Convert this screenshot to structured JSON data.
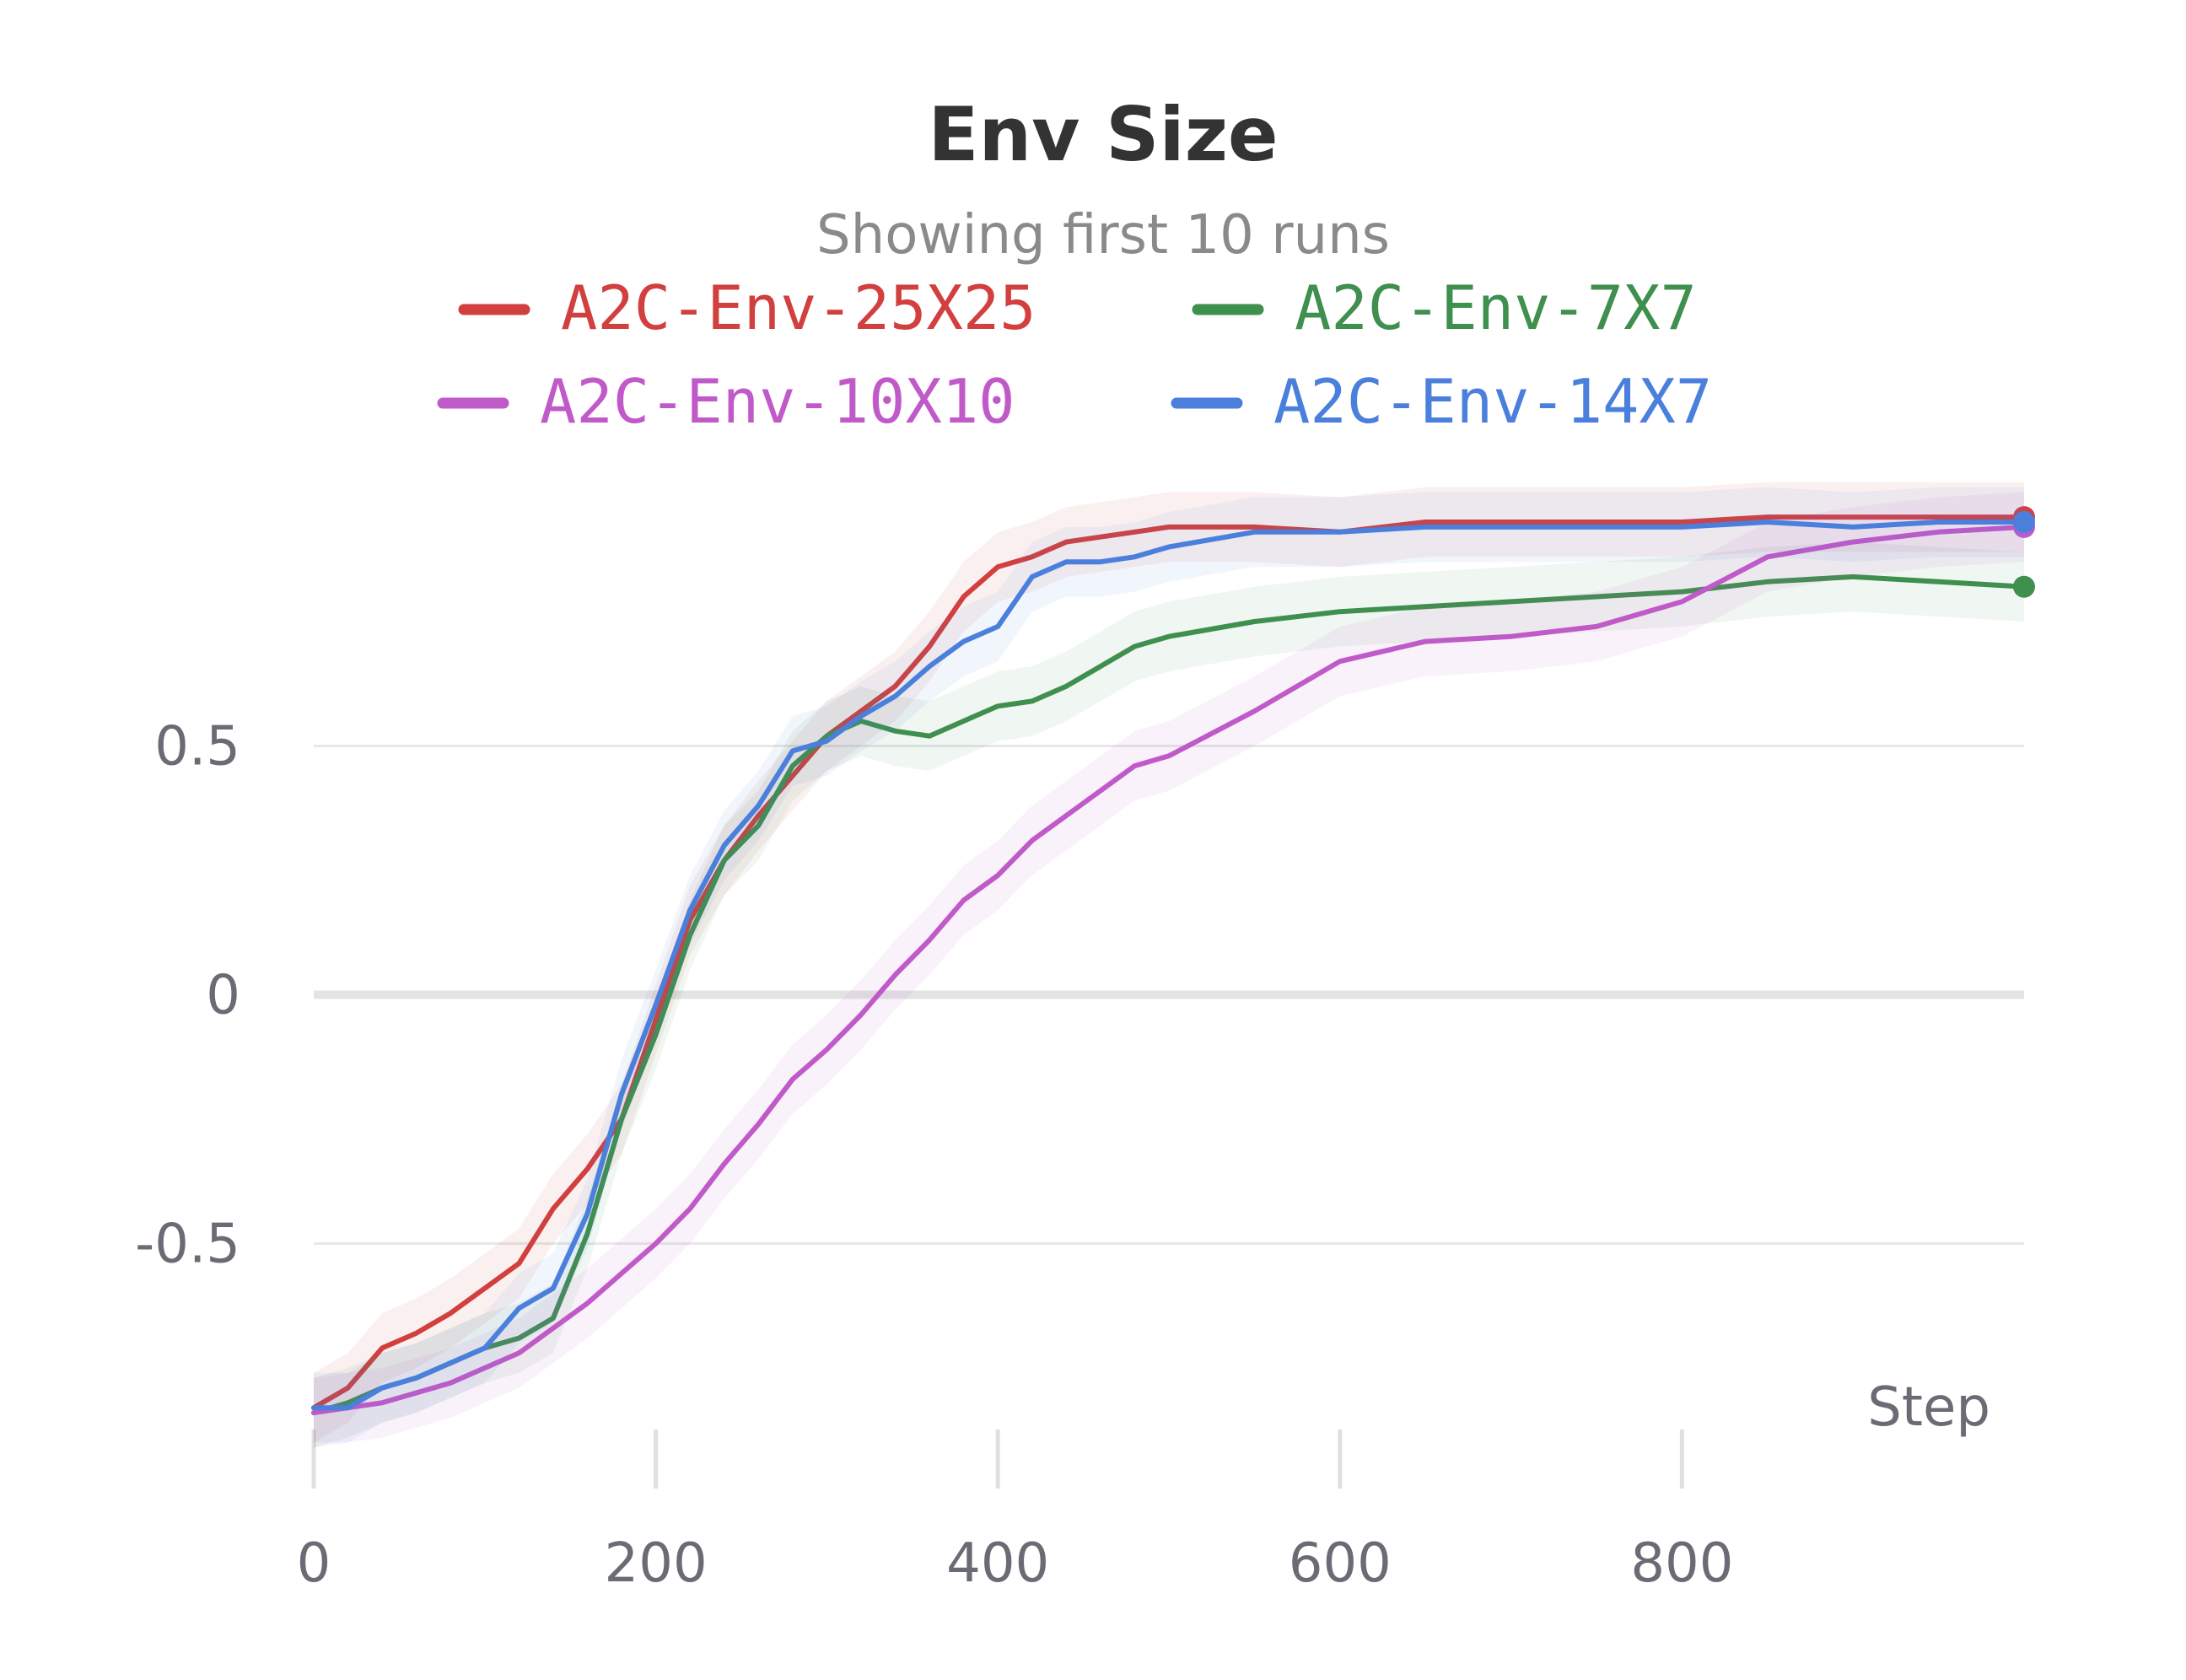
{
  "chart_data": {
    "type": "line",
    "title": "Env Size",
    "subtitle": "Showing first 10 runs",
    "xlabel": "Step",
    "ylabel": "",
    "xlim": [
      0,
      1000
    ],
    "ylim": [
      -0.95,
      1.05
    ],
    "x_ticks": [
      0,
      200,
      400,
      600,
      800
    ],
    "x_tick_labels": [
      "0",
      "200",
      "400",
      "600",
      "800"
    ],
    "y_ticks": [
      0.5,
      0,
      -0.5
    ],
    "y_tick_labels": [
      "0.5",
      "0",
      "-0.5"
    ],
    "grid": "horizontal",
    "legend_position": "top",
    "series": [
      {
        "name": "A2C-Env-25X25",
        "color": "#d23f3f",
        "x": [
          0,
          20,
          40,
          60,
          80,
          100,
          120,
          140,
          160,
          180,
          200,
          220,
          240,
          260,
          280,
          300,
          320,
          340,
          360,
          380,
          400,
          420,
          440,
          460,
          480,
          500,
          550,
          600,
          650,
          700,
          750,
          800,
          850,
          900,
          950,
          1000
        ],
        "y": [
          -0.83,
          -0.79,
          -0.71,
          -0.68,
          -0.64,
          -0.59,
          -0.54,
          -0.43,
          -0.35,
          -0.25,
          -0.05,
          0.15,
          0.27,
          0.36,
          0.44,
          0.52,
          0.57,
          0.62,
          0.7,
          0.8,
          0.86,
          0.88,
          0.91,
          0.92,
          0.93,
          0.94,
          0.94,
          0.93,
          0.95,
          0.95,
          0.95,
          0.95,
          0.96,
          0.96,
          0.96,
          0.96
        ]
      },
      {
        "name": "A2C-Env-7X7",
        "color": "#3f8f4f",
        "x": [
          0,
          20,
          40,
          60,
          80,
          100,
          120,
          140,
          160,
          180,
          200,
          220,
          240,
          260,
          280,
          300,
          320,
          340,
          360,
          380,
          400,
          420,
          440,
          460,
          480,
          500,
          550,
          600,
          650,
          700,
          750,
          800,
          850,
          900,
          950,
          1000
        ],
        "y": [
          -0.84,
          -0.82,
          -0.79,
          -0.77,
          -0.74,
          -0.71,
          -0.69,
          -0.65,
          -0.48,
          -0.25,
          -0.08,
          0.12,
          0.27,
          0.34,
          0.46,
          0.52,
          0.55,
          0.53,
          0.52,
          0.55,
          0.58,
          0.59,
          0.62,
          0.66,
          0.7,
          0.72,
          0.75,
          0.77,
          0.78,
          0.79,
          0.8,
          0.81,
          0.83,
          0.84,
          0.83,
          0.82
        ]
      },
      {
        "name": "A2C-Env-10X10",
        "color": "#c05ac8",
        "x": [
          0,
          20,
          40,
          60,
          80,
          100,
          120,
          140,
          160,
          180,
          200,
          220,
          240,
          260,
          280,
          300,
          320,
          340,
          360,
          380,
          400,
          420,
          440,
          460,
          480,
          500,
          550,
          600,
          650,
          700,
          750,
          800,
          850,
          900,
          950,
          1000
        ],
        "y": [
          -0.84,
          -0.83,
          -0.82,
          -0.8,
          -0.78,
          -0.75,
          -0.72,
          -0.67,
          -0.62,
          -0.56,
          -0.5,
          -0.43,
          -0.34,
          -0.26,
          -0.17,
          -0.11,
          -0.04,
          0.04,
          0.11,
          0.19,
          0.24,
          0.31,
          0.36,
          0.41,
          0.46,
          0.48,
          0.57,
          0.67,
          0.71,
          0.72,
          0.74,
          0.79,
          0.88,
          0.91,
          0.93,
          0.94
        ]
      },
      {
        "name": "A2C-Env-14X7",
        "color": "#4a7fdc",
        "x": [
          0,
          20,
          40,
          60,
          80,
          100,
          120,
          140,
          160,
          180,
          200,
          220,
          240,
          260,
          280,
          300,
          320,
          340,
          360,
          380,
          400,
          420,
          440,
          460,
          480,
          500,
          550,
          600,
          650,
          700,
          750,
          800,
          850,
          900,
          950,
          1000
        ],
        "y": [
          -0.83,
          -0.83,
          -0.79,
          -0.77,
          -0.74,
          -0.71,
          -0.63,
          -0.59,
          -0.44,
          -0.2,
          -0.02,
          0.17,
          0.3,
          0.38,
          0.49,
          0.51,
          0.56,
          0.6,
          0.66,
          0.71,
          0.74,
          0.84,
          0.87,
          0.87,
          0.88,
          0.9,
          0.93,
          0.93,
          0.94,
          0.94,
          0.94,
          0.94,
          0.95,
          0.94,
          0.95,
          0.95
        ]
      }
    ]
  }
}
